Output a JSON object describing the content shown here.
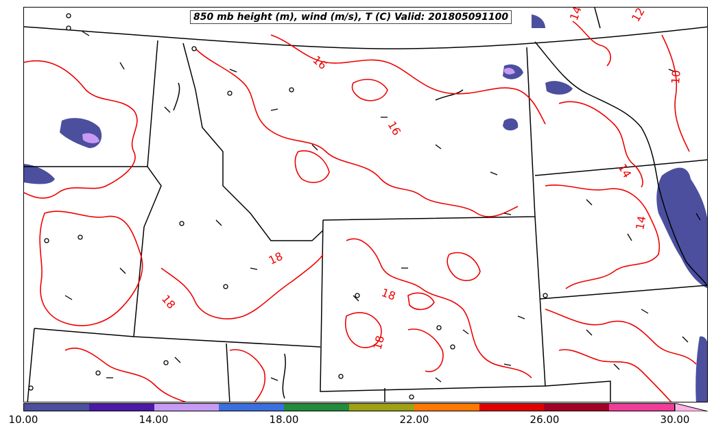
{
  "title": "850 mb height (m), wind (m/s), T (C) Valid: 201805091100",
  "colorbar": {
    "colors": [
      "#4b4f9e",
      "#4a1aa6",
      "#c79bf4",
      "#3b6fe0",
      "#228b3c",
      "#9ea114",
      "#ff7800",
      "#e00000",
      "#a30026",
      "#f03d9a",
      "#ffb3e6"
    ],
    "ticks": [
      "10.00",
      "14.00",
      "18.00",
      "22.00",
      "26.00",
      "30.00"
    ],
    "range": [
      10,
      32
    ]
  },
  "isotherm_labels": [
    "14",
    "12",
    "10",
    "16",
    "16",
    "14",
    "14",
    "18",
    "18",
    "18",
    "18"
  ],
  "colors": {
    "isotherm": "#ee0000",
    "boundary": "#000000",
    "shading": "#4b4f9e"
  }
}
